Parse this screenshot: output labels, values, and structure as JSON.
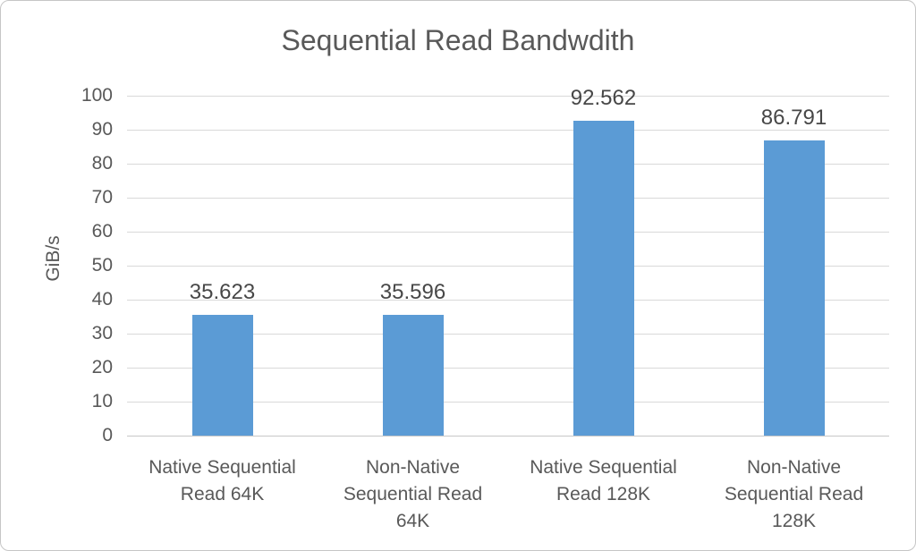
{
  "chart_data": {
    "type": "bar",
    "title": "Sequential Read Bandwdith",
    "xlabel": "",
    "ylabel": "GiB/s",
    "categories": [
      "Native Sequential Read 64K",
      "Non-Native Sequential Read 64K",
      "Native Sequential Read 128K",
      "Non-Native Sequential Read 128K"
    ],
    "values": [
      35.623,
      35.596,
      92.562,
      86.791
    ],
    "value_labels": [
      "35.623",
      "35.596",
      "92.562",
      "86.791"
    ],
    "ylim": [
      0,
      100
    ],
    "ytick_step": 10,
    "ytick_labels": [
      "0",
      "10",
      "20",
      "30",
      "40",
      "50",
      "60",
      "70",
      "80",
      "90",
      "100"
    ],
    "grid": true,
    "legend_position": "none",
    "colors": {
      "bar": "#5B9BD5",
      "gridline": "#D9D9D9",
      "axis_line": "#C8C8C8",
      "text": "#595959",
      "value_label": "#474747",
      "frame_border": "#C6C6C6",
      "background": "#FFFFFF"
    }
  }
}
